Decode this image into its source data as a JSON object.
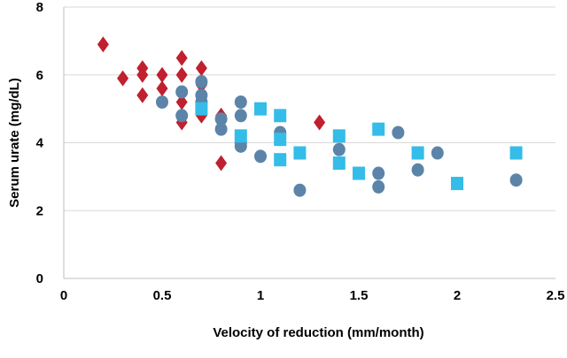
{
  "chart_data": {
    "type": "scatter",
    "title": "",
    "xlabel": "Velocity of reduction (mm/month)",
    "ylabel": "Serum urate (mg/dL)",
    "xlim": [
      0,
      2.5
    ],
    "ylim": [
      0,
      8
    ],
    "x_ticks": [
      "0",
      "0.5",
      "1",
      "1.5",
      "2",
      "2.5"
    ],
    "x_tick_values": [
      0,
      0.5,
      1,
      1.5,
      2,
      2.5
    ],
    "y_ticks": [
      "0",
      "2",
      "4",
      "6",
      "8"
    ],
    "y_tick_values": [
      0,
      2,
      4,
      6,
      8
    ],
    "grid": "horizontal",
    "legend": "none",
    "series": [
      {
        "marker": "diamond",
        "color": "#c0202f",
        "points": [
          [
            0.2,
            6.9
          ],
          [
            0.3,
            5.9
          ],
          [
            0.4,
            6.2
          ],
          [
            0.4,
            6.0
          ],
          [
            0.4,
            5.4
          ],
          [
            0.5,
            6.0
          ],
          [
            0.5,
            5.6
          ],
          [
            0.6,
            6.5
          ],
          [
            0.6,
            6.0
          ],
          [
            0.6,
            5.2
          ],
          [
            0.6,
            4.6
          ],
          [
            0.7,
            6.2
          ],
          [
            0.7,
            5.7
          ],
          [
            0.7,
            4.8
          ],
          [
            0.8,
            4.8
          ],
          [
            0.8,
            3.4
          ],
          [
            1.3,
            4.6
          ]
        ]
      },
      {
        "marker": "circle",
        "color": "#5b84a8",
        "points": [
          [
            0.5,
            5.2
          ],
          [
            0.6,
            5.5
          ],
          [
            0.6,
            4.8
          ],
          [
            0.7,
            5.8
          ],
          [
            0.7,
            5.4
          ],
          [
            0.7,
            5.2
          ],
          [
            0.8,
            4.7
          ],
          [
            0.8,
            4.4
          ],
          [
            0.9,
            5.2
          ],
          [
            0.9,
            4.8
          ],
          [
            0.9,
            4.0
          ],
          [
            0.9,
            3.9
          ],
          [
            1.0,
            3.6
          ],
          [
            1.1,
            4.3
          ],
          [
            1.2,
            2.6
          ],
          [
            1.4,
            3.8
          ],
          [
            1.6,
            3.1
          ],
          [
            1.6,
            2.7
          ],
          [
            1.7,
            4.3
          ],
          [
            1.8,
            3.2
          ],
          [
            1.9,
            3.7
          ],
          [
            2.3,
            2.9
          ]
        ]
      },
      {
        "marker": "square",
        "color": "#33bde8",
        "points": [
          [
            0.7,
            5.0
          ],
          [
            0.9,
            4.2
          ],
          [
            1.0,
            5.0
          ],
          [
            1.1,
            4.8
          ],
          [
            1.1,
            4.1
          ],
          [
            1.1,
            3.5
          ],
          [
            1.2,
            3.7
          ],
          [
            1.4,
            4.2
          ],
          [
            1.4,
            3.4
          ],
          [
            1.5,
            3.1
          ],
          [
            1.6,
            4.4
          ],
          [
            1.8,
            3.7
          ],
          [
            2.0,
            2.8
          ],
          [
            2.3,
            3.7
          ]
        ]
      }
    ]
  }
}
